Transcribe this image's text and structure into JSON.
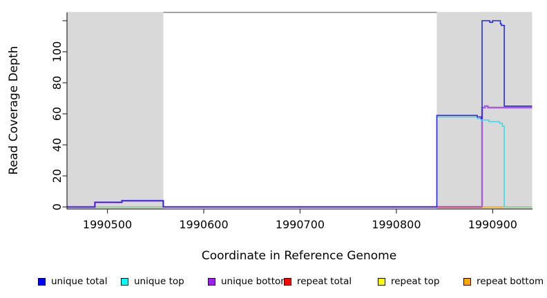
{
  "chart_data": {
    "type": "line",
    "title": "",
    "xlabel": "Coordinate in Reference Genome",
    "ylabel": "Read Coverage Depth",
    "xlim": [
      1990458,
      1990941
    ],
    "ylim": [
      0,
      120
    ],
    "x_ticks": [
      1990500,
      1990600,
      1990700,
      1990800,
      1990900
    ],
    "x_tick_labels": [
      "1990500",
      "1990600",
      "1990700",
      "1990800",
      "1990900"
    ],
    "y_ticks": [
      0,
      20,
      40,
      60,
      80,
      100,
      120
    ],
    "y_tick_labels": [
      "0",
      "20",
      "40",
      "60",
      "80",
      "100",
      ""
    ],
    "grid": false,
    "plot_bg": "#ffffff",
    "shaded_region_color": "#d9d9d9",
    "background_regions": [
      {
        "name": "shaded-region-left",
        "x": [
          1990458,
          1990558
        ]
      },
      {
        "name": "shaded-region-right",
        "x": [
          1990842,
          1990941
        ]
      }
    ],
    "series": [
      {
        "name": "zero coverage green",
        "color": "#82c982",
        "width": 1.4,
        "segments": [
          [
            [
              1990487,
              0
            ],
            [
              1990558,
              0
            ]
          ],
          [
            [
              1990912,
              0
            ],
            [
              1990941,
              0
            ]
          ]
        ]
      },
      {
        "name": "unique bottom",
        "color": "#a85ae0",
        "width": 2.4,
        "segments": [
          [
            [
              1990458,
              0
            ],
            [
              1990487,
              3
            ],
            [
              1990515,
              4
            ],
            [
              1990558,
              0
            ],
            [
              1990889,
              64
            ],
            [
              1990892,
              65
            ],
            [
              1990895,
              64
            ],
            [
              1990941,
              64
            ]
          ]
        ]
      },
      {
        "name": "repeat total",
        "color": "#e04858",
        "width": 1.4,
        "segments": [
          [
            [
              1990842,
              0
            ],
            [
              1990889,
              0
            ]
          ]
        ]
      },
      {
        "name": "repeat bottom",
        "color": "#ffa500",
        "width": 1.6,
        "segments": [
          [
            [
              1990889,
              0
            ],
            [
              1990912,
              0
            ]
          ]
        ]
      },
      {
        "name": "unique top",
        "color": "#44d6e6",
        "width": 1.6,
        "segments": [
          [
            [
              1990842,
              58
            ],
            [
              1990884,
              57
            ],
            [
              1990888,
              56
            ],
            [
              1990896,
              55
            ],
            [
              1990907,
              54
            ],
            [
              1990910,
              52
            ],
            [
              1990912,
              0
            ]
          ]
        ]
      },
      {
        "name": "unique total",
        "color": "#2828e8",
        "width": 1.6,
        "segments": [
          [
            [
              1990458,
              0
            ],
            [
              1990487,
              3
            ],
            [
              1990515,
              4
            ],
            [
              1990558,
              0
            ],
            [
              1990842,
              59
            ],
            [
              1990884,
              58
            ],
            [
              1990888,
              57
            ],
            [
              1990889,
              120
            ],
            [
              1990897,
              119
            ],
            [
              1990900,
              120
            ],
            [
              1990908,
              118
            ],
            [
              1990909,
              117
            ],
            [
              1990912,
              65
            ],
            [
              1990941,
              65
            ]
          ]
        ]
      }
    ],
    "legend": {
      "position": "bottom",
      "items": [
        {
          "label": "unique total",
          "color": "#0000ff"
        },
        {
          "label": "unique top",
          "color": "#00ffff"
        },
        {
          "label": "unique bottom",
          "color": "#a020f0"
        },
        {
          "label": "repeat total",
          "color": "#ff0000"
        },
        {
          "label": "repeat top",
          "color": "#ffff00"
        },
        {
          "label": "repeat bottom",
          "color": "#ffa500"
        }
      ]
    }
  }
}
